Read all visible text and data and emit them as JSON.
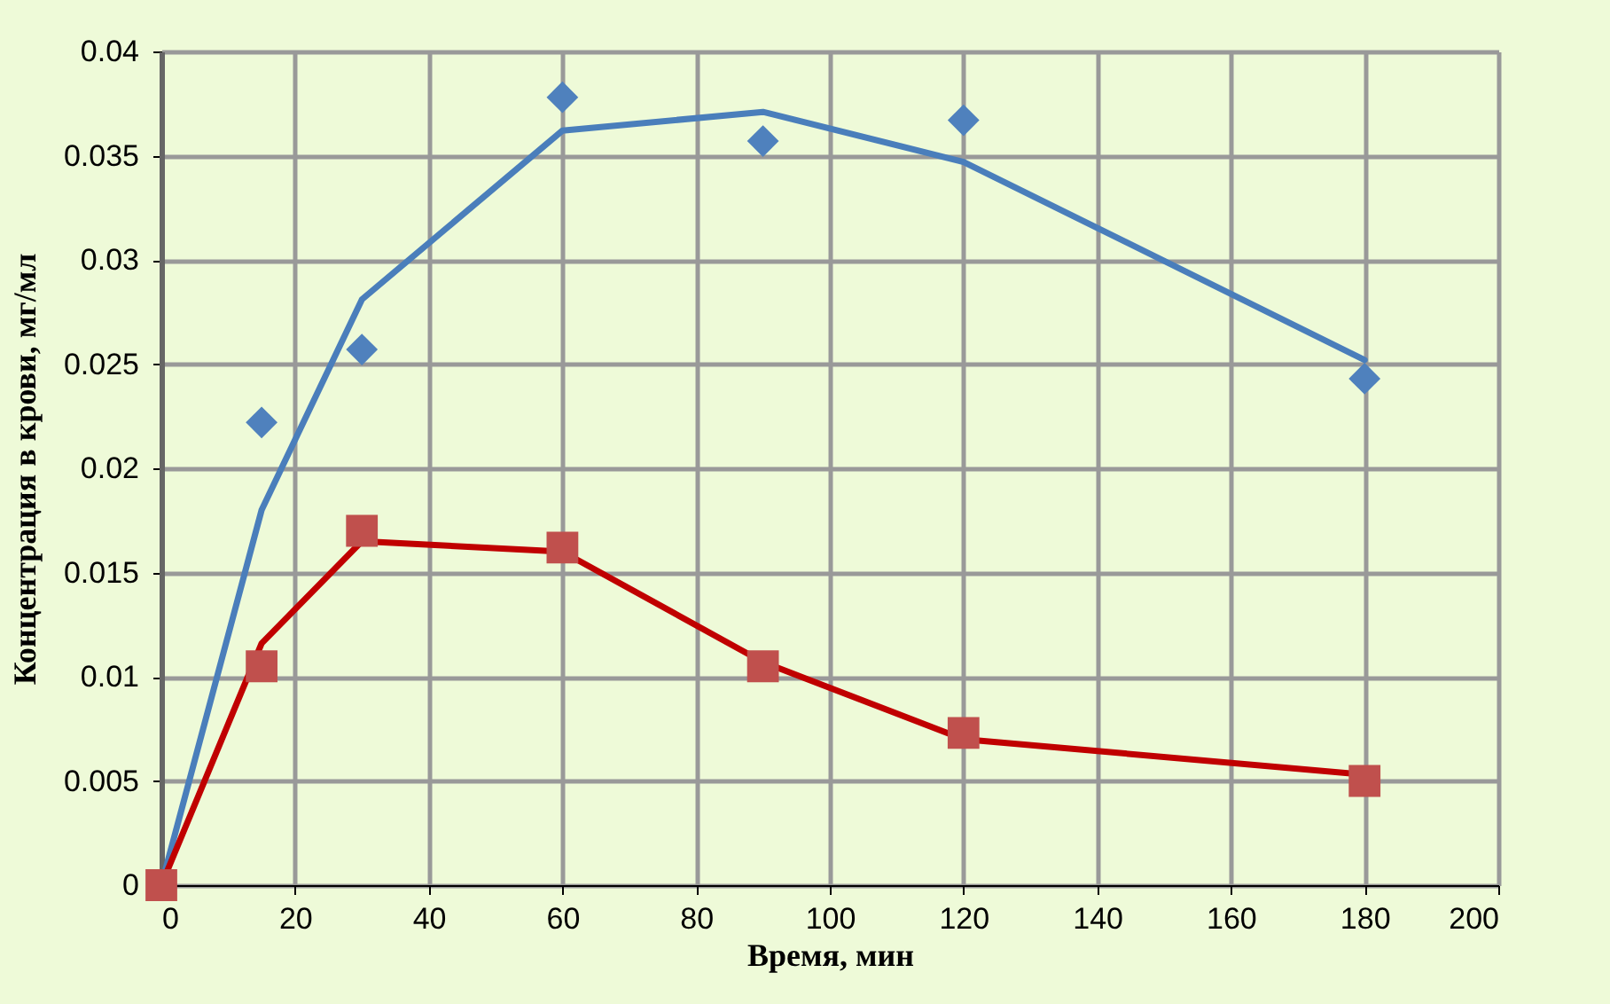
{
  "chart_data": {
    "type": "scatter",
    "xlabel": "Время, мин",
    "ylabel": "Концентрация в крови, мг/мл",
    "x": [
      0,
      15,
      30,
      60,
      90,
      120,
      180
    ],
    "series": [
      {
        "type": "line",
        "color": "#4a7ebb",
        "values": [
          0,
          0.018,
          0.0281,
          0.0362,
          0.0371,
          0.0347,
          0.0252
        ]
      },
      {
        "type": "line",
        "color": "#c00000",
        "values": [
          0,
          0.0116,
          0.0165,
          0.016,
          0.0107,
          0.007,
          0.0053
        ]
      },
      {
        "marker": "diamond",
        "color": "#4f81bd",
        "values": [
          null,
          0.0222,
          0.0257,
          0.0378,
          0.0357,
          0.0367,
          0.0243
        ]
      },
      {
        "marker": "square",
        "color": "#c0504d",
        "values": [
          0,
          0.0105,
          0.017,
          0.0162,
          0.0105,
          0.0073,
          0.005
        ]
      }
    ],
    "xlim": [
      0,
      200
    ],
    "xticks": [
      0,
      20,
      40,
      60,
      80,
      100,
      120,
      140,
      160,
      180,
      200
    ],
    "ylim": [
      0,
      0.04
    ],
    "yticks": [
      0,
      0.005,
      0.01,
      0.015,
      0.02,
      0.025,
      0.03,
      0.035,
      0.04
    ],
    "grid": true
  }
}
